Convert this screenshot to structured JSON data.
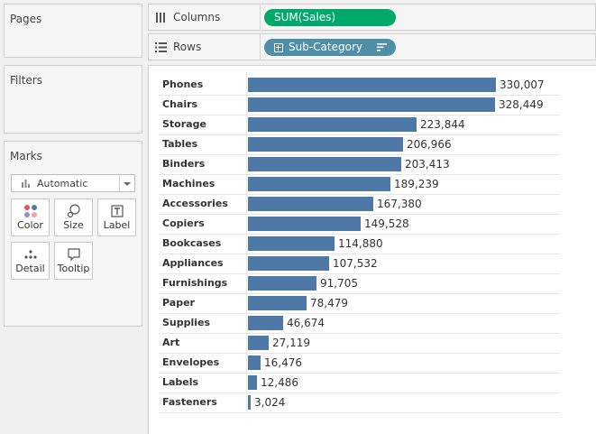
{
  "sidebar": {
    "pages_title": "Pages",
    "filters_title": "Filters",
    "marks_title": "Marks",
    "mark_type": "Automatic",
    "mark_buttons": {
      "color": "Color",
      "size": "Size",
      "label": "Label",
      "detail": "Detail",
      "tooltip": "Tooltip"
    }
  },
  "shelves": {
    "columns_label": "Columns",
    "columns_pill": "SUM(Sales)",
    "rows_label": "Rows",
    "rows_pill": "Sub-Category"
  },
  "colors": {
    "bar": "#4e79a7",
    "measure_pill": "#00a86b",
    "dimension_pill": "#4e8ea6"
  },
  "chart_data": {
    "type": "bar",
    "orientation": "horizontal",
    "categories": [
      "Phones",
      "Chairs",
      "Storage",
      "Tables",
      "Binders",
      "Machines",
      "Accessories",
      "Copiers",
      "Bookcases",
      "Appliances",
      "Furnishings",
      "Paper",
      "Supplies",
      "Art",
      "Envelopes",
      "Labels",
      "Fasteners"
    ],
    "values": [
      330007,
      328449,
      223844,
      206966,
      203413,
      189239,
      167380,
      149528,
      114880,
      107532,
      91705,
      78479,
      46674,
      27119,
      16476,
      12486,
      3024
    ],
    "labels": [
      "330,007",
      "328,449",
      "223,844",
      "206,966",
      "203,413",
      "189,239",
      "167,380",
      "149,528",
      "114,880",
      "107,532",
      "91,705",
      "78,479",
      "46,674",
      "27,119",
      "16,476",
      "12,486",
      "3,024"
    ],
    "xlim": [
      0,
      330007
    ]
  }
}
